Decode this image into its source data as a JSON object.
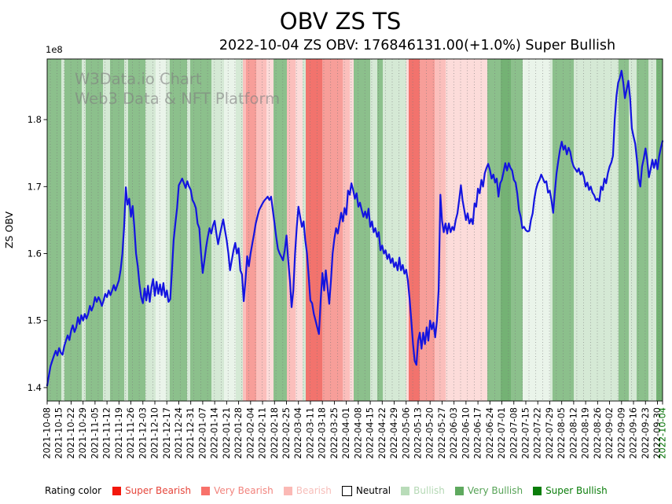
{
  "chart_data": {
    "type": "line",
    "title": "OBV ZS TS",
    "subtitle": "2022-10-04 ZS OBV: 176846131.00(+1.0%) Super Bullish",
    "ylabel": "ZS OBV",
    "y_offset_label": "1e8",
    "y_ticks": [
      1.4,
      1.5,
      1.6,
      1.7,
      1.8
    ],
    "ylim": [
      1.38,
      1.8905
    ],
    "line_color": "#1414e0",
    "last_tick_color": "#007000",
    "grid": {
      "spacing_px": 8.7,
      "color": "#777777",
      "style": "dotted-vertical"
    },
    "watermark": [
      "W3Data.io Chart",
      "Web3 Data & NFT Platform"
    ],
    "x_tick_labels": [
      "2021-10-08",
      "2021-10-15",
      "2021-10-22",
      "2021-10-29",
      "2021-11-05",
      "2021-11-12",
      "2021-11-19",
      "2021-11-26",
      "2021-12-03",
      "2021-12-10",
      "2021-12-17",
      "2021-12-24",
      "2021-12-31",
      "2022-01-07",
      "2022-01-14",
      "2022-01-21",
      "2022-01-28",
      "2022-02-04",
      "2022-02-11",
      "2022-02-18",
      "2022-02-25",
      "2022-03-04",
      "2022-03-11",
      "2022-03-18",
      "2022-03-25",
      "2022-04-01",
      "2022-04-08",
      "2022-04-15",
      "2022-04-22",
      "2022-04-29",
      "2022-05-06",
      "2022-05-13",
      "2022-05-20",
      "2022-05-27",
      "2022-06-03",
      "2022-06-10",
      "2022-06-17",
      "2022-06-24",
      "2022-07-01",
      "2022-07-08",
      "2022-07-15",
      "2022-07-22",
      "2022-07-29",
      "2022-08-05",
      "2022-08-12",
      "2022-08-19",
      "2022-08-26",
      "2022-09-02",
      "2022-09-09",
      "2022-09-16",
      "2022-09-23",
      "2022-09-30",
      "2022-10-04"
    ],
    "series": [
      {
        "name": "ZS OBV (x1e8)",
        "values": [
          1.403,
          1.418,
          1.432,
          1.44,
          1.448,
          1.455,
          1.448,
          1.459,
          1.452,
          1.449,
          1.462,
          1.47,
          1.478,
          1.471,
          1.485,
          1.493,
          1.483,
          1.49,
          1.505,
          1.495,
          1.508,
          1.5,
          1.51,
          1.503,
          1.51,
          1.522,
          1.515,
          1.522,
          1.535,
          1.528,
          1.535,
          1.53,
          1.522,
          1.53,
          1.54,
          1.535,
          1.545,
          1.538,
          1.545,
          1.553,
          1.545,
          1.553,
          1.56,
          1.576,
          1.6,
          1.64,
          1.699,
          1.673,
          1.682,
          1.655,
          1.671,
          1.64,
          1.6,
          1.581,
          1.555,
          1.535,
          1.526,
          1.548,
          1.53,
          1.552,
          1.528,
          1.55,
          1.562,
          1.537,
          1.558,
          1.54,
          1.554,
          1.538,
          1.556,
          1.535,
          1.545,
          1.528,
          1.532,
          1.575,
          1.62,
          1.645,
          1.668,
          1.702,
          1.707,
          1.712,
          1.705,
          1.698,
          1.708,
          1.7,
          1.695,
          1.68,
          1.675,
          1.668,
          1.645,
          1.638,
          1.6,
          1.571,
          1.59,
          1.61,
          1.625,
          1.638,
          1.63,
          1.642,
          1.649,
          1.63,
          1.614,
          1.628,
          1.64,
          1.651,
          1.635,
          1.62,
          1.6,
          1.575,
          1.59,
          1.605,
          1.616,
          1.6,
          1.608,
          1.575,
          1.569,
          1.529,
          1.56,
          1.596,
          1.581,
          1.6,
          1.615,
          1.629,
          1.645,
          1.655,
          1.665,
          1.67,
          1.675,
          1.679,
          1.682,
          1.685,
          1.68,
          1.685,
          1.665,
          1.645,
          1.625,
          1.607,
          1.6,
          1.595,
          1.59,
          1.605,
          1.627,
          1.59,
          1.56,
          1.52,
          1.545,
          1.6,
          1.64,
          1.67,
          1.655,
          1.64,
          1.648,
          1.62,
          1.6,
          1.565,
          1.53,
          1.526,
          1.51,
          1.5,
          1.49,
          1.48,
          1.53,
          1.571,
          1.545,
          1.575,
          1.55,
          1.525,
          1.56,
          1.6,
          1.622,
          1.638,
          1.63,
          1.645,
          1.661,
          1.648,
          1.668,
          1.658,
          1.694,
          1.688,
          1.705,
          1.695,
          1.682,
          1.69,
          1.67,
          1.676,
          1.665,
          1.655,
          1.663,
          1.653,
          1.667,
          1.64,
          1.648,
          1.632,
          1.638,
          1.625,
          1.632,
          1.605,
          1.612,
          1.6,
          1.605,
          1.592,
          1.599,
          1.586,
          1.593,
          1.58,
          1.587,
          1.575,
          1.594,
          1.575,
          1.583,
          1.57,
          1.576,
          1.56,
          1.533,
          1.5,
          1.465,
          1.44,
          1.434,
          1.47,
          1.482,
          1.458,
          1.482,
          1.465,
          1.49,
          1.47,
          1.5,
          1.487,
          1.497,
          1.475,
          1.5,
          1.546,
          1.688,
          1.649,
          1.632,
          1.645,
          1.63,
          1.645,
          1.632,
          1.64,
          1.635,
          1.65,
          1.66,
          1.68,
          1.702,
          1.68,
          1.665,
          1.65,
          1.66,
          1.645,
          1.652,
          1.644,
          1.675,
          1.67,
          1.697,
          1.69,
          1.71,
          1.7,
          1.72,
          1.728,
          1.734,
          1.725,
          1.712,
          1.718,
          1.706,
          1.712,
          1.685,
          1.705,
          1.71,
          1.722,
          1.735,
          1.724,
          1.735,
          1.728,
          1.724,
          1.71,
          1.706,
          1.69,
          1.665,
          1.655,
          1.638,
          1.64,
          1.635,
          1.633,
          1.634,
          1.65,
          1.66,
          1.682,
          1.696,
          1.705,
          1.71,
          1.718,
          1.712,
          1.706,
          1.708,
          1.691,
          1.694,
          1.68,
          1.661,
          1.693,
          1.72,
          1.738,
          1.755,
          1.767,
          1.755,
          1.761,
          1.748,
          1.758,
          1.752,
          1.738,
          1.73,
          1.726,
          1.722,
          1.727,
          1.718,
          1.722,
          1.714,
          1.7,
          1.706,
          1.695,
          1.7,
          1.691,
          1.687,
          1.68,
          1.682,
          1.678,
          1.7,
          1.695,
          1.712,
          1.705,
          1.72,
          1.73,
          1.736,
          1.746,
          1.8,
          1.835,
          1.855,
          1.862,
          1.873,
          1.855,
          1.832,
          1.845,
          1.858,
          1.832,
          1.787,
          1.775,
          1.764,
          1.74,
          1.712,
          1.7,
          1.73,
          1.742,
          1.757,
          1.74,
          1.714,
          1.726,
          1.74,
          1.728,
          1.74,
          1.726,
          1.745,
          1.758,
          1.768
        ]
      }
    ],
    "band_colors": {
      "super_bearish": "#f2736d",
      "very_bearish": "#f79e99",
      "bearish": "#fbbfbc",
      "bearish_weak": "#fcdcda",
      "neutral": "#ffffff",
      "bullish_weak": "#eaf4ea",
      "bullish": "#d5e9d5",
      "very_bullish": "#8cc08c",
      "super_bullish": "#74b274"
    },
    "bands": [
      [
        0,
        18,
        "very_bullish"
      ],
      [
        18,
        22,
        "bullish"
      ],
      [
        22,
        44,
        "very_bullish"
      ],
      [
        44,
        49,
        "bullish"
      ],
      [
        49,
        71,
        "very_bullish"
      ],
      [
        71,
        80,
        "bullish"
      ],
      [
        80,
        98,
        "very_bullish"
      ],
      [
        98,
        103,
        "bullish"
      ],
      [
        103,
        125,
        "very_bullish"
      ],
      [
        125,
        138,
        "bullish"
      ],
      [
        138,
        151,
        "bullish_weak"
      ],
      [
        151,
        156,
        "bullish"
      ],
      [
        156,
        178,
        "very_bullish"
      ],
      [
        178,
        182,
        "bullish"
      ],
      [
        182,
        209,
        "very_bullish"
      ],
      [
        209,
        225,
        "bullish"
      ],
      [
        225,
        240,
        "bullish_weak"
      ],
      [
        240,
        249,
        "bullish"
      ],
      [
        249,
        253,
        "bearish"
      ],
      [
        253,
        266,
        "very_bearish"
      ],
      [
        266,
        279,
        "bearish"
      ],
      [
        279,
        288,
        "bearish_weak"
      ],
      [
        288,
        305,
        "very_bullish"
      ],
      [
        305,
        316,
        "bearish"
      ],
      [
        316,
        325,
        "bearish_weak"
      ],
      [
        325,
        329,
        "bullish"
      ],
      [
        329,
        350,
        "super_bearish"
      ],
      [
        350,
        376,
        "very_bearish"
      ],
      [
        376,
        385,
        "bearish"
      ],
      [
        385,
        390,
        "bearish_weak"
      ],
      [
        390,
        411,
        "very_bullish"
      ],
      [
        411,
        420,
        "bullish"
      ],
      [
        420,
        427,
        "very_bullish"
      ],
      [
        427,
        457,
        "bullish"
      ],
      [
        457,
        460,
        "bearish_weak"
      ],
      [
        460,
        474,
        "super_bearish"
      ],
      [
        474,
        493,
        "very_bearish"
      ],
      [
        493,
        507,
        "bearish"
      ],
      [
        507,
        560,
        "bearish_weak"
      ],
      [
        560,
        577,
        "very_bullish"
      ],
      [
        577,
        590,
        "super_bullish"
      ],
      [
        590,
        605,
        "very_bullish"
      ],
      [
        605,
        640,
        "bullish_weak"
      ],
      [
        640,
        643,
        "bullish"
      ],
      [
        643,
        670,
        "very_bullish"
      ],
      [
        670,
        727,
        "bullish"
      ],
      [
        727,
        740,
        "very_bullish"
      ],
      [
        740,
        750,
        "bullish"
      ],
      [
        750,
        765,
        "very_bullish"
      ],
      [
        765,
        775,
        "bullish"
      ],
      [
        775,
        783,
        "super_bullish"
      ]
    ]
  },
  "legend": {
    "label": "Rating color",
    "items": [
      {
        "label": "Super Bearish",
        "swatch": "#f3170c",
        "text_color": "#e6453b",
        "border": false
      },
      {
        "label": "Very Bearish",
        "swatch": "#f8716a",
        "text_color": "#f2837d",
        "border": false
      },
      {
        "label": "Bearish",
        "swatch": "#fbb9b5",
        "text_color": "#f7bdb9",
        "border": false
      },
      {
        "label": "Neutral",
        "swatch": "#ffffff",
        "text_color": "#000000",
        "border": true
      },
      {
        "label": "Bullish",
        "swatch": "#b9dcb9",
        "text_color": "#b4d8b4",
        "border": false
      },
      {
        "label": "Very Bullish",
        "swatch": "#5fa95f",
        "text_color": "#56a356",
        "border": false
      },
      {
        "label": "Super Bullish",
        "swatch": "#0a7d0a",
        "text_color": "#0a7d0a",
        "border": false
      }
    ]
  }
}
